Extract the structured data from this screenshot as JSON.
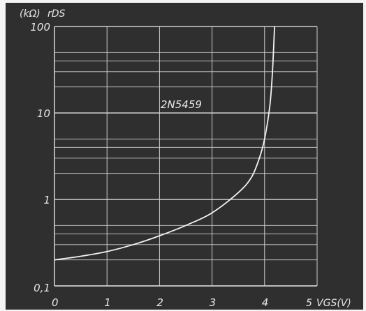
{
  "chart_data": {
    "type": "line",
    "title": "2N5459",
    "ylabel_unit": "(kΩ)",
    "ylabel": "rDS",
    "xlabel": "VGS(V)",
    "xlabel_prefix": "5",
    "x_scale": "linear",
    "y_scale": "log",
    "xlim": [
      0,
      5
    ],
    "ylim": [
      0.1,
      100
    ],
    "x_ticks": [
      "0",
      "1",
      "2",
      "3",
      "4"
    ],
    "y_ticks": [
      "0,1",
      "1",
      "10",
      "100"
    ],
    "grid": true,
    "series": [
      {
        "x": [
          0,
          0.5,
          1.0,
          1.5,
          2.0,
          2.5,
          3.0,
          3.5,
          3.75,
          3.9,
          4.0,
          4.1,
          4.15,
          4.19
        ],
        "y": [
          0.2,
          0.22,
          0.25,
          0.3,
          0.38,
          0.5,
          0.7,
          1.2,
          1.8,
          3.0,
          5.0,
          12.0,
          30.0,
          100.0
        ]
      }
    ],
    "colors": {
      "background": "#2f2f2f",
      "grid": "#cfcfcf",
      "line": "#f2f2f2",
      "text": "#e6e6e6"
    }
  }
}
